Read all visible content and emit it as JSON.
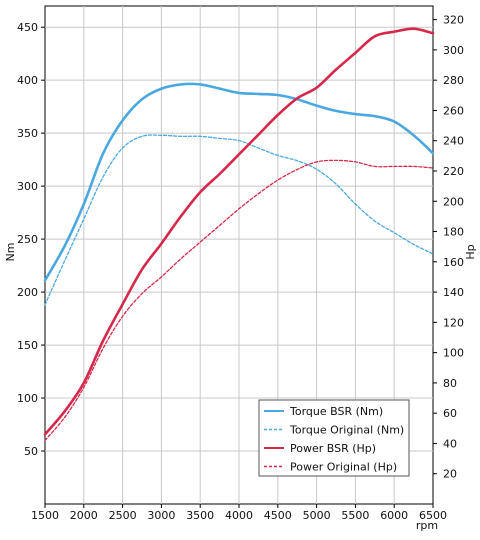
{
  "chart_data": {
    "type": "line",
    "xlabel": "rpm",
    "ylabel_left": "Nm",
    "ylabel_right": "Hp",
    "xlim": [
      1500,
      6500
    ],
    "ylim_left": [
      0,
      470
    ],
    "ylim_right": [
      0,
      329
    ],
    "x_ticks": [
      1500,
      2000,
      2500,
      3000,
      3500,
      4000,
      4500,
      5000,
      5500,
      6000,
      6500
    ],
    "y_ticks_left": [
      50,
      100,
      150,
      200,
      250,
      300,
      350,
      400,
      450
    ],
    "y_ticks_right": [
      20,
      40,
      60,
      80,
      100,
      120,
      140,
      160,
      180,
      200,
      220,
      240,
      260,
      280,
      300,
      320
    ],
    "grid": true,
    "legend_position": "bottom-right",
    "colors": {
      "torque": "#4aa8e0",
      "power": "#d6284a"
    },
    "series": [
      {
        "name": "Torque BSR (Nm)",
        "axis": "left",
        "style": "solid",
        "color": "#4aa8e0",
        "x": [
          1500,
          1750,
          2000,
          2250,
          2500,
          2750,
          3000,
          3250,
          3500,
          3750,
          4000,
          4250,
          4500,
          4750,
          5000,
          5250,
          5500,
          5750,
          6000,
          6250,
          6500
        ],
        "y": [
          211,
          243,
          283,
          331,
          362,
          382,
          392,
          396,
          396,
          392,
          388,
          387,
          386,
          382,
          376,
          371,
          368,
          366,
          361,
          348,
          331
        ]
      },
      {
        "name": "Torque Original (Nm)",
        "axis": "left",
        "style": "dashed",
        "color": "#4aa8e0",
        "x": [
          1500,
          1750,
          2000,
          2250,
          2500,
          2750,
          3000,
          3250,
          3500,
          3750,
          4000,
          4250,
          4500,
          4750,
          5000,
          5250,
          5500,
          5750,
          6000,
          6250,
          6500
        ],
        "y": [
          188,
          229,
          269,
          309,
          336,
          347,
          348,
          347,
          347,
          345,
          343,
          336,
          329,
          324,
          316,
          302,
          283,
          267,
          256,
          245,
          236
        ]
      },
      {
        "name": "Power BSR (Hp)",
        "axis": "right",
        "style": "solid",
        "color": "#d6284a",
        "x": [
          1500,
          1750,
          2000,
          2250,
          2500,
          2750,
          3000,
          3250,
          3500,
          3750,
          4000,
          4250,
          4500,
          4750,
          5000,
          5250,
          5500,
          5750,
          6000,
          6250,
          6500
        ],
        "y": [
          46,
          61,
          80,
          108,
          132,
          155,
          172,
          190,
          206,
          218,
          231,
          244,
          257,
          268,
          275,
          287,
          298,
          309,
          312,
          314,
          311
        ]
      },
      {
        "name": "Power Original (Hp)",
        "axis": "right",
        "style": "dashed",
        "color": "#d6284a",
        "x": [
          1500,
          1750,
          2000,
          2250,
          2500,
          2750,
          3000,
          3250,
          3500,
          3750,
          4000,
          4250,
          4500,
          4750,
          5000,
          5250,
          5500,
          5750,
          6000,
          6250,
          6500
        ],
        "y": [
          42,
          57,
          77,
          103,
          124,
          139,
          150,
          162,
          173,
          184,
          195,
          205,
          214,
          221,
          226,
          227,
          226,
          223,
          223,
          223,
          222
        ]
      }
    ]
  }
}
